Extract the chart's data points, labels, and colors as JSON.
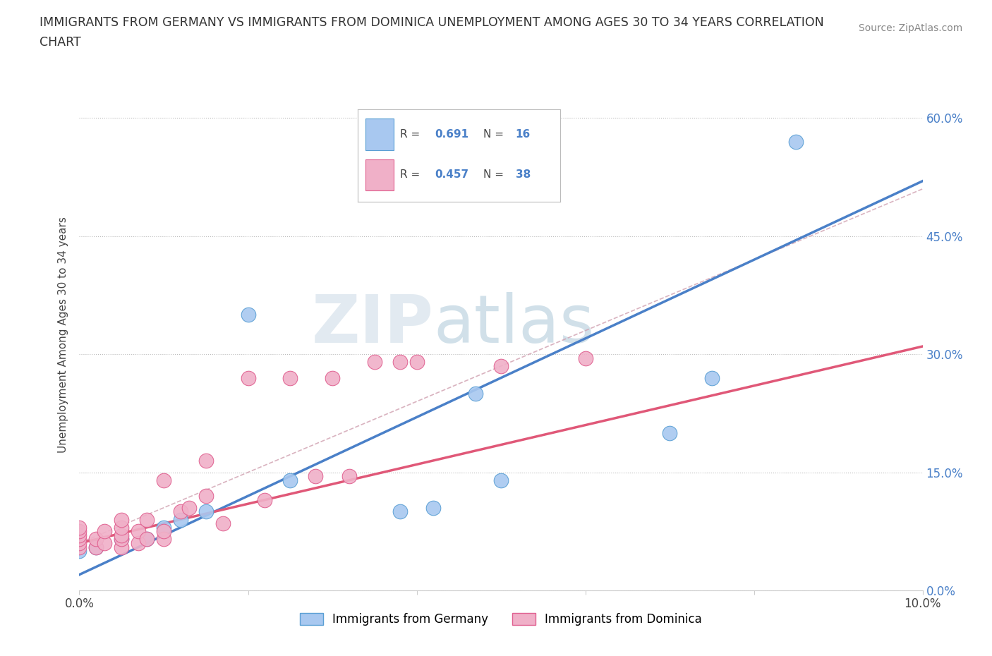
{
  "title_line1": "IMMIGRANTS FROM GERMANY VS IMMIGRANTS FROM DOMINICA UNEMPLOYMENT AMONG AGES 30 TO 34 YEARS CORRELATION",
  "title_line2": "CHART",
  "source_text": "Source: ZipAtlas.com",
  "ylabel": "Unemployment Among Ages 30 to 34 years",
  "xlim": [
    0.0,
    0.1
  ],
  "ylim": [
    0.0,
    0.65
  ],
  "xtick_pos": [
    0.0,
    0.02,
    0.04,
    0.06,
    0.08,
    0.1
  ],
  "xticklabels": [
    "0.0%",
    "",
    "",
    "",
    "",
    "10.0%"
  ],
  "ytick_pos": [
    0.0,
    0.15,
    0.3,
    0.45,
    0.6
  ],
  "yticklabels": [
    "0.0%",
    "15.0%",
    "30.0%",
    "45.0%",
    "60.0%"
  ],
  "germany_color": "#a8c8f0",
  "germany_edge_color": "#5a9fd4",
  "dominica_color": "#f0b0c8",
  "dominica_edge_color": "#e06090",
  "trendline_germany_color": "#4a80c8",
  "trendline_dominica_color": "#e05878",
  "confidence_color": "#d0a0b0",
  "R_germany": 0.691,
  "N_germany": 16,
  "R_dominica": 0.457,
  "N_dominica": 38,
  "germany_x": [
    0.0,
    0.002,
    0.005,
    0.008,
    0.01,
    0.012,
    0.015,
    0.02,
    0.025,
    0.038,
    0.042,
    0.047,
    0.05,
    0.07,
    0.075,
    0.085
  ],
  "germany_y": [
    0.05,
    0.055,
    0.065,
    0.065,
    0.08,
    0.09,
    0.1,
    0.35,
    0.14,
    0.1,
    0.105,
    0.25,
    0.14,
    0.2,
    0.27,
    0.57
  ],
  "dominica_x": [
    0.0,
    0.0,
    0.0,
    0.0,
    0.0,
    0.0,
    0.002,
    0.002,
    0.003,
    0.003,
    0.005,
    0.005,
    0.005,
    0.005,
    0.005,
    0.007,
    0.007,
    0.008,
    0.008,
    0.01,
    0.01,
    0.01,
    0.012,
    0.013,
    0.015,
    0.015,
    0.017,
    0.02,
    0.022,
    0.025,
    0.028,
    0.03,
    0.032,
    0.035,
    0.038,
    0.04,
    0.05,
    0.06
  ],
  "dominica_y": [
    0.055,
    0.06,
    0.065,
    0.07,
    0.075,
    0.08,
    0.055,
    0.065,
    0.06,
    0.075,
    0.055,
    0.065,
    0.07,
    0.08,
    0.09,
    0.06,
    0.075,
    0.065,
    0.09,
    0.065,
    0.075,
    0.14,
    0.1,
    0.105,
    0.12,
    0.165,
    0.085,
    0.27,
    0.115,
    0.27,
    0.145,
    0.27,
    0.145,
    0.29,
    0.29,
    0.29,
    0.285,
    0.295
  ],
  "watermark_text": "ZIPatlas",
  "background_color": "#ffffff",
  "grid_color": "#bbbbbb",
  "legend_label_color": "#4a80c8",
  "legend_text_color": "#444444"
}
